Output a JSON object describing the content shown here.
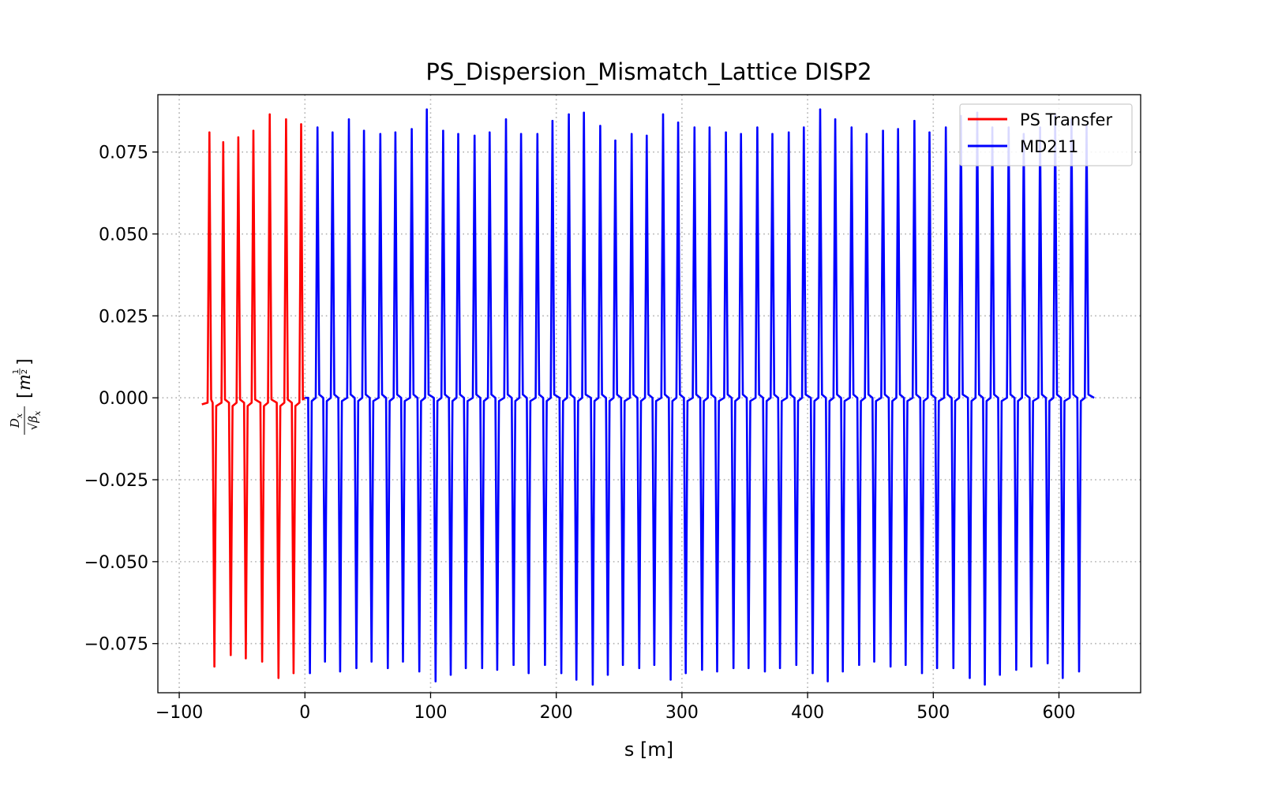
{
  "chart_data": {
    "type": "line",
    "title": "PS_Dispersion_Mismatch_Lattice DISP2",
    "xlabel": "s [m]",
    "ylabel": {
      "numerator": "D",
      "numerator_sub": "x",
      "denominator": "√β",
      "denominator_sub": "x",
      "unit_base": "m",
      "unit_exp_num": "1",
      "unit_exp_den": "2"
    },
    "xlim": [
      -117,
      665
    ],
    "ylim": [
      -0.09,
      0.0925
    ],
    "x_ticks": [
      -100,
      0,
      100,
      200,
      300,
      400,
      500,
      600
    ],
    "x_tick_labels": [
      "−100",
      "0",
      "100",
      "200",
      "300",
      "400",
      "500",
      "600"
    ],
    "y_ticks": [
      -0.075,
      -0.05,
      -0.025,
      0.0,
      0.025,
      0.05,
      0.075
    ],
    "y_tick_labels": [
      "−0.075",
      "−0.050",
      "−0.025",
      "0.000",
      "0.025",
      "0.050",
      "0.075"
    ],
    "grid": true,
    "legend_position": "top-right",
    "series": [
      {
        "name": "PS Transfer",
        "color": "#ff0000",
        "start": -82,
        "end": 0,
        "peaks": [
          [
            -76,
            0.081
          ],
          [
            -65,
            0.078
          ],
          [
            -53,
            0.0795
          ],
          [
            -41,
            0.0815
          ],
          [
            -28,
            0.0865
          ],
          [
            -15,
            0.085
          ],
          [
            -3,
            0.0835
          ]
        ],
        "troughs": [
          [
            -72,
            -0.082
          ],
          [
            -59,
            -0.0785
          ],
          [
            -47,
            -0.0795
          ],
          [
            -34,
            -0.0805
          ],
          [
            -21,
            -0.0855
          ],
          [
            -9,
            -0.084
          ]
        ]
      },
      {
        "name": "MD211",
        "color": "#0000ff",
        "start": 0,
        "end": 628,
        "peaks": [
          [
            10,
            0.0825
          ],
          [
            22,
            0.081
          ],
          [
            35,
            0.085
          ],
          [
            47,
            0.0815
          ],
          [
            60,
            0.0805
          ],
          [
            72,
            0.081
          ],
          [
            85,
            0.082
          ],
          [
            97,
            0.088
          ],
          [
            110,
            0.0815
          ],
          [
            122,
            0.0805
          ],
          [
            135,
            0.08
          ],
          [
            147,
            0.081
          ],
          [
            160,
            0.085
          ],
          [
            172,
            0.0805
          ],
          [
            185,
            0.0805
          ],
          [
            197,
            0.0845
          ],
          [
            210,
            0.0865
          ],
          [
            222,
            0.087
          ],
          [
            235,
            0.083
          ],
          [
            247,
            0.0785
          ],
          [
            260,
            0.0805
          ],
          [
            272,
            0.08
          ],
          [
            285,
            0.0865
          ],
          [
            297,
            0.084
          ],
          [
            310,
            0.0825
          ],
          [
            322,
            0.0825
          ],
          [
            335,
            0.081
          ],
          [
            347,
            0.0805
          ],
          [
            360,
            0.0825
          ],
          [
            372,
            0.0805
          ],
          [
            385,
            0.081
          ],
          [
            397,
            0.0825
          ],
          [
            410,
            0.088
          ],
          [
            422,
            0.085
          ],
          [
            435,
            0.0825
          ],
          [
            447,
            0.0805
          ],
          [
            460,
            0.0815
          ],
          [
            472,
            0.082
          ],
          [
            485,
            0.0845
          ],
          [
            497,
            0.081
          ],
          [
            510,
            0.0825
          ],
          [
            522,
            0.086
          ],
          [
            535,
            0.087
          ],
          [
            547,
            0.0825
          ],
          [
            560,
            0.0825
          ],
          [
            572,
            0.0805
          ],
          [
            585,
            0.0825
          ],
          [
            597,
            0.0865
          ],
          [
            610,
            0.085
          ],
          [
            622,
            0.083
          ]
        ],
        "troughs": [
          [
            4,
            -0.084
          ],
          [
            16,
            -0.0805
          ],
          [
            28,
            -0.0835
          ],
          [
            41,
            -0.0825
          ],
          [
            53,
            -0.0805
          ],
          [
            66,
            -0.0825
          ],
          [
            78,
            -0.0805
          ],
          [
            91,
            -0.0835
          ],
          [
            104,
            -0.0865
          ],
          [
            116,
            -0.0845
          ],
          [
            128,
            -0.0825
          ],
          [
            141,
            -0.0825
          ],
          [
            153,
            -0.083
          ],
          [
            166,
            -0.0815
          ],
          [
            178,
            -0.084
          ],
          [
            191,
            -0.0815
          ],
          [
            204,
            -0.084
          ],
          [
            216,
            -0.086
          ],
          [
            229,
            -0.0875
          ],
          [
            241,
            -0.0845
          ],
          [
            253,
            -0.0815
          ],
          [
            266,
            -0.0825
          ],
          [
            278,
            -0.0815
          ],
          [
            291,
            -0.086
          ],
          [
            303,
            -0.084
          ],
          [
            316,
            -0.083
          ],
          [
            328,
            -0.0835
          ],
          [
            341,
            -0.0825
          ],
          [
            353,
            -0.0825
          ],
          [
            366,
            -0.0835
          ],
          [
            378,
            -0.0825
          ],
          [
            391,
            -0.0815
          ],
          [
            404,
            -0.084
          ],
          [
            416,
            -0.0865
          ],
          [
            428,
            -0.0835
          ],
          [
            441,
            -0.0815
          ],
          [
            453,
            -0.0805
          ],
          [
            466,
            -0.082
          ],
          [
            478,
            -0.0815
          ],
          [
            491,
            -0.084
          ],
          [
            503,
            -0.0825
          ],
          [
            516,
            -0.0825
          ],
          [
            529,
            -0.0855
          ],
          [
            541,
            -0.0875
          ],
          [
            553,
            -0.0845
          ],
          [
            566,
            -0.083
          ],
          [
            578,
            -0.082
          ],
          [
            591,
            -0.081
          ],
          [
            603,
            -0.0855
          ],
          [
            616,
            -0.0835
          ]
        ]
      }
    ]
  }
}
